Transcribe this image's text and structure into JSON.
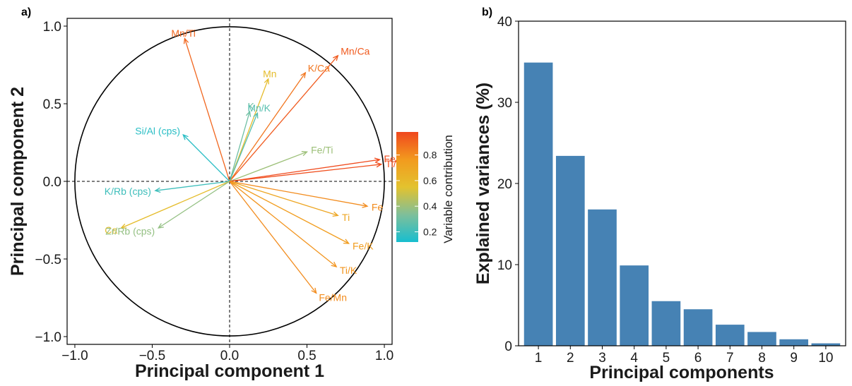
{
  "chart_data": [
    {
      "panel": "a)",
      "type": "scatter",
      "subtype": "pca-correlation-circle",
      "xlabel": "Principal component 1",
      "ylabel": "Principal component 2",
      "xlim": [
        -1.05,
        1.05
      ],
      "ylim": [
        -1.05,
        1.05
      ],
      "xticks": [
        -1.0,
        -0.5,
        0.0,
        0.5,
        1.0
      ],
      "yticks": [
        -1.0,
        -0.5,
        0.0,
        0.5,
        1.0
      ],
      "xtick_labels": [
        "−1.0",
        "−0.5",
        "0.0",
        "0.5",
        "1.0"
      ],
      "ytick_labels": [
        "−1.0",
        "−0.5",
        "0.0",
        "0.5",
        "1.0"
      ],
      "unit_circle": true,
      "reference_lines": "dashed at x=0 and y=0",
      "colorbar": {
        "title": "Variable contribution",
        "ticks": [
          0.2,
          0.4,
          0.6,
          0.8
        ],
        "tick_labels": [
          "0.2",
          "0.4",
          "0.6",
          "0.8"
        ],
        "range": [
          0.12,
          0.98
        ],
        "colors": [
          "#17becf",
          "#7fbf9a",
          "#e3c22e",
          "#f29a1e",
          "#f0471e"
        ]
      },
      "vectors": [
        {
          "label": "Mn/Ti",
          "x": -0.29,
          "y": 0.92,
          "contribution": 0.9
        },
        {
          "label": "Mn/Ca",
          "x": 0.7,
          "y": 0.81,
          "contribution": 0.93
        },
        {
          "label": "K/Ca",
          "x": 0.49,
          "y": 0.7,
          "contribution": 0.86
        },
        {
          "label": "Mn",
          "x": 0.25,
          "y": 0.66,
          "contribution": 0.58
        },
        {
          "label": "K",
          "x": 0.13,
          "y": 0.45,
          "contribution": 0.3
        },
        {
          "label": "Mn/K",
          "x": 0.18,
          "y": 0.44,
          "contribution": 0.25
        },
        {
          "label": "Si/Al (cps)",
          "x": -0.3,
          "y": 0.3,
          "contribution": 0.16
        },
        {
          "label": "Fe/Ti",
          "x": 0.5,
          "y": 0.19,
          "contribution": 0.4
        },
        {
          "label": "Fe/Ca",
          "x": 0.97,
          "y": 0.14,
          "contribution": 0.97
        },
        {
          "label": "Ti/Ca",
          "x": 0.98,
          "y": 0.11,
          "contribution": 0.96
        },
        {
          "label": "K/Rb (cps)",
          "x": -0.48,
          "y": -0.06,
          "contribution": 0.2
        },
        {
          "label": "Ca",
          "x": -0.7,
          "y": -0.3,
          "contribution": 0.58
        },
        {
          "label": "Zr/Rb (cps)",
          "x": -0.46,
          "y": -0.3,
          "contribution": 0.38
        },
        {
          "label": "Fe",
          "x": 0.89,
          "y": -0.16,
          "contribution": 0.8
        },
        {
          "label": "Ti",
          "x": 0.7,
          "y": -0.22,
          "contribution": 0.7
        },
        {
          "label": "Fe/K",
          "x": 0.77,
          "y": -0.4,
          "contribution": 0.75
        },
        {
          "label": "Ti/K",
          "x": 0.69,
          "y": -0.55,
          "contribution": 0.78
        },
        {
          "label": "Fe/Mn",
          "x": 0.56,
          "y": -0.72,
          "contribution": 0.8
        }
      ]
    },
    {
      "panel": "b)",
      "type": "bar",
      "xlabel": "Principal components",
      "ylabel": "Explained variances (%)",
      "categories": [
        "1",
        "2",
        "3",
        "4",
        "5",
        "6",
        "7",
        "8",
        "9",
        "10"
      ],
      "values": [
        34.9,
        23.4,
        16.8,
        9.9,
        5.5,
        4.5,
        2.6,
        1.7,
        0.8,
        0.3
      ],
      "ylim": [
        0,
        40
      ],
      "yticks": [
        0,
        10,
        20,
        30,
        40
      ],
      "ytick_labels": [
        "0",
        "10",
        "20",
        "30",
        "40"
      ],
      "bar_color": "#4682b4"
    }
  ]
}
